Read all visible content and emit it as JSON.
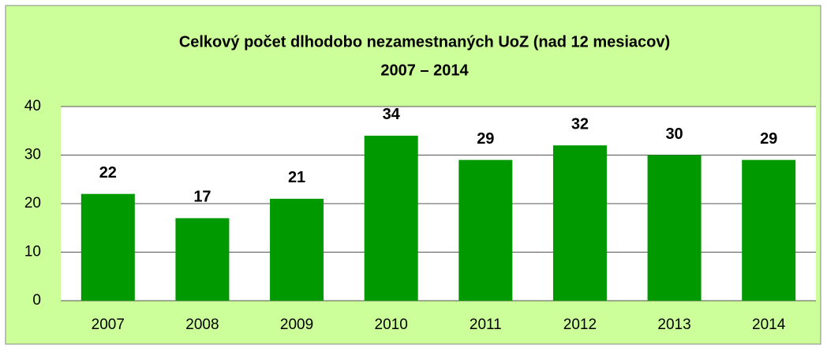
{
  "chart_data": {
    "type": "bar",
    "title": "Celkový počet dlhodobo nezamestnaných UoZ (nad 12 mesiacov)",
    "subtitle": "2007 – 2014",
    "categories": [
      "2007",
      "2008",
      "2009",
      "2010",
      "2011",
      "2012",
      "2013",
      "2014"
    ],
    "values": [
      22,
      17,
      21,
      34,
      29,
      32,
      30,
      29
    ],
    "color": "#009900",
    "ylim": [
      0,
      40
    ],
    "yticks": [
      0,
      10,
      20,
      30,
      40
    ],
    "grid": true
  }
}
